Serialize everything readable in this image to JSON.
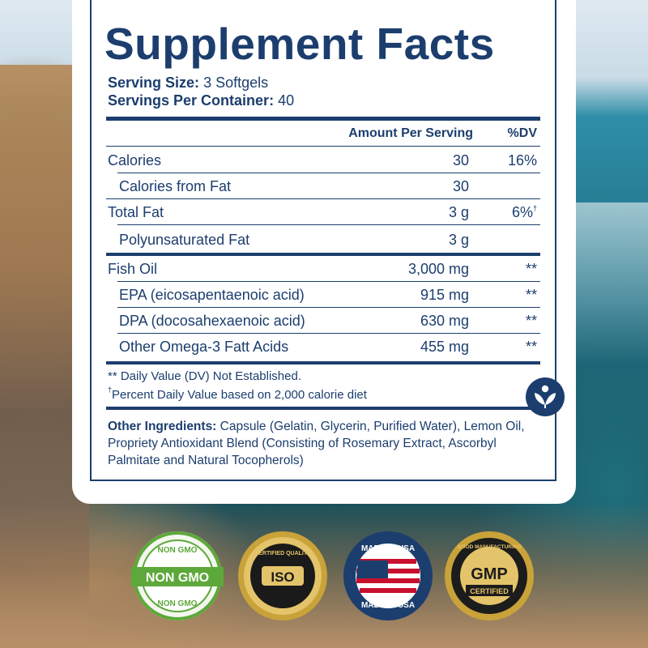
{
  "title": "Supplement Facts",
  "serving_size": {
    "label": "Serving Size:",
    "value": "3 Softgels"
  },
  "servings_per_container": {
    "label": "Servings Per Container:",
    "value": "40"
  },
  "columns": {
    "amount": "Amount Per Serving",
    "dv": "%DV"
  },
  "rows": [
    {
      "name": "Calories",
      "amount": "30",
      "dv": "16%"
    },
    {
      "name": "Calories from Fat",
      "amount": "30",
      "dv": ""
    },
    {
      "name": "Total Fat",
      "amount": "3 g",
      "dv": "6%"
    },
    {
      "name": "Polyunsaturated Fat",
      "amount": "3 g",
      "dv": ""
    },
    {
      "name": "Fish Oil",
      "amount": "3,000 mg",
      "dv": "**"
    },
    {
      "name": "EPA (eicosapentaenoic acid)",
      "amount": "915 mg",
      "dv": "**"
    },
    {
      "name": "DPA (docosahexaenoic acid)",
      "amount": "630 mg",
      "dv": "**"
    },
    {
      "name": "Other Omega-3 Fatt Acids",
      "amount": "455 mg",
      "dv": "**"
    }
  ],
  "dagger": "†",
  "footnotes": {
    "dv_not_established": "** Daily Value (DV) Not Established.",
    "percent_dv": "Percent Daily Value based on 2,000 calorie diet"
  },
  "other_ingredients": {
    "label": "Other Ingredients:",
    "text": "Capsule (Gelatin, Glycerin, Purified Water), Lemon Oil, Propriety Antioxidant Blend (Consisting of Rosemary Extract, Ascorbyl Palmitate and Natural Tocopherols)"
  },
  "badges": {
    "non_gmo": {
      "ring_text": "NON GMO",
      "banner": "NON GMO"
    },
    "iso": {
      "ring_text": "CERTIFIED QUALITY",
      "center": "ISO"
    },
    "made_in_usa": {
      "top": "MADE IN USA",
      "bottom": "MADE IN USA"
    },
    "gmp": {
      "ring_text": "GOOD MANUFACTURING",
      "center": "GMP",
      "banner": "CERTIFIED"
    }
  },
  "colors": {
    "navy": "#1c3e6e",
    "green": "#5da83a",
    "gold": "#c9a23a"
  }
}
